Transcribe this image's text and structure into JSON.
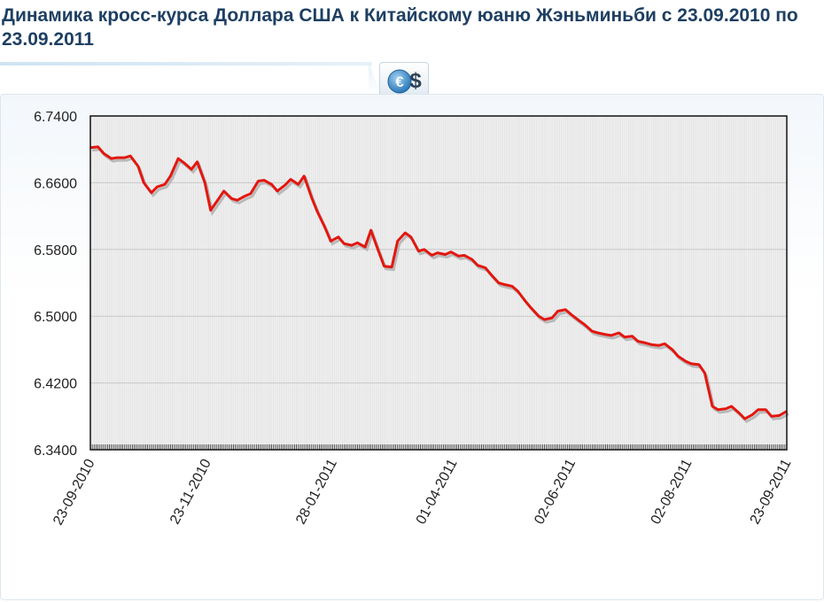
{
  "header": {
    "title": "Динамика кросс-курса Доллара США к Китайскому юаню Жэньминьби с 23.09.2010 по 23.09.2011",
    "badge_icon": "euro-dollar-icon"
  },
  "colors": {
    "title": "#1e3f62",
    "line": "#e2170f",
    "plot_bg": "#f0f0f0",
    "grid": "#d9d9d9"
  },
  "chart_data": {
    "type": "line",
    "ylim": [
      6.34,
      6.74
    ],
    "y_ticks": [
      "6.7400",
      "6.6600",
      "6.5800",
      "6.5000",
      "6.4200",
      "6.3400"
    ],
    "x_ticks": [
      {
        "label": "23-09-2010",
        "x": "2010-09-23"
      },
      {
        "label": "23-11-2010",
        "x": "2010-11-23"
      },
      {
        "label": "28-01-2011",
        "x": "2011-01-28"
      },
      {
        "label": "01-04-2011",
        "x": "2011-04-01"
      },
      {
        "label": "02-06-2011",
        "x": "2011-06-02"
      },
      {
        "label": "02-08-2011",
        "x": "2011-08-02"
      },
      {
        "label": "23-09-2011",
        "x": "2011-09-23"
      }
    ],
    "xlim": [
      "2010-09-23",
      "2011-09-23"
    ],
    "grid": true,
    "series": [
      {
        "points": [
          [
            "2010-09-23",
            6.702
          ],
          [
            "2010-09-27",
            6.703
          ],
          [
            "2010-09-30",
            6.695
          ],
          [
            "2010-10-04",
            6.689
          ],
          [
            "2010-10-07",
            6.69
          ],
          [
            "2010-10-11",
            6.69
          ],
          [
            "2010-10-14",
            6.692
          ],
          [
            "2010-10-18",
            6.68
          ],
          [
            "2010-10-21",
            6.66
          ],
          [
            "2010-10-25",
            6.648
          ],
          [
            "2010-10-28",
            6.655
          ],
          [
            "2010-11-01",
            6.658
          ],
          [
            "2010-11-04",
            6.668
          ],
          [
            "2010-11-08",
            6.689
          ],
          [
            "2010-11-11",
            6.684
          ],
          [
            "2010-11-15",
            6.676
          ],
          [
            "2010-11-18",
            6.685
          ],
          [
            "2010-11-22",
            6.66
          ],
          [
            "2010-11-25",
            6.627
          ],
          [
            "2010-11-29",
            6.64
          ],
          [
            "2010-12-02",
            6.65
          ],
          [
            "2010-12-06",
            6.641
          ],
          [
            "2010-12-09",
            6.639
          ],
          [
            "2010-12-13",
            6.644
          ],
          [
            "2010-12-16",
            6.647
          ],
          [
            "2010-12-20",
            6.662
          ],
          [
            "2010-12-23",
            6.663
          ],
          [
            "2010-12-27",
            6.658
          ],
          [
            "2010-12-30",
            6.65
          ],
          [
            "2011-01-03",
            6.657
          ],
          [
            "2011-01-06",
            6.664
          ],
          [
            "2011-01-10",
            6.658
          ],
          [
            "2011-01-13",
            6.668
          ],
          [
            "2011-01-17",
            6.642
          ],
          [
            "2011-01-20",
            6.625
          ],
          [
            "2011-01-24",
            6.606
          ],
          [
            "2011-01-27",
            6.59
          ],
          [
            "2011-01-31",
            6.595
          ],
          [
            "2011-02-03",
            6.587
          ],
          [
            "2011-02-07",
            6.585
          ],
          [
            "2011-02-10",
            6.588
          ],
          [
            "2011-02-14",
            6.583
          ],
          [
            "2011-02-17",
            6.603
          ],
          [
            "2011-02-21",
            6.578
          ],
          [
            "2011-02-24",
            6.56
          ],
          [
            "2011-02-28",
            6.559
          ],
          [
            "2011-03-03",
            6.59
          ],
          [
            "2011-03-07",
            6.6
          ],
          [
            "2011-03-10",
            6.595
          ],
          [
            "2011-03-14",
            6.578
          ],
          [
            "2011-03-17",
            6.58
          ],
          [
            "2011-03-21",
            6.573
          ],
          [
            "2011-03-24",
            6.576
          ],
          [
            "2011-03-28",
            6.574
          ],
          [
            "2011-03-31",
            6.577
          ],
          [
            "2011-04-04",
            6.572
          ],
          [
            "2011-04-07",
            6.573
          ],
          [
            "2011-04-11",
            6.568
          ],
          [
            "2011-04-14",
            6.561
          ],
          [
            "2011-04-18",
            6.558
          ],
          [
            "2011-04-21",
            6.55
          ],
          [
            "2011-04-25",
            6.54
          ],
          [
            "2011-04-28",
            6.538
          ],
          [
            "2011-05-02",
            6.536
          ],
          [
            "2011-05-05",
            6.53
          ],
          [
            "2011-05-09",
            6.518
          ],
          [
            "2011-05-12",
            6.51
          ],
          [
            "2011-05-16",
            6.5
          ],
          [
            "2011-05-19",
            6.496
          ],
          [
            "2011-05-23",
            6.498
          ],
          [
            "2011-05-26",
            6.506
          ],
          [
            "2011-05-30",
            6.508
          ],
          [
            "2011-06-02",
            6.502
          ],
          [
            "2011-06-06",
            6.495
          ],
          [
            "2011-06-09",
            6.49
          ],
          [
            "2011-06-13",
            6.482
          ],
          [
            "2011-06-16",
            6.48
          ],
          [
            "2011-06-20",
            6.478
          ],
          [
            "2011-06-23",
            6.477
          ],
          [
            "2011-06-27",
            6.48
          ],
          [
            "2011-06-30",
            6.475
          ],
          [
            "2011-07-04",
            6.476
          ],
          [
            "2011-07-07",
            6.47
          ],
          [
            "2011-07-11",
            6.468
          ],
          [
            "2011-07-14",
            6.466
          ],
          [
            "2011-07-18",
            6.465
          ],
          [
            "2011-07-21",
            6.467
          ],
          [
            "2011-07-25",
            6.46
          ],
          [
            "2011-07-28",
            6.452
          ],
          [
            "2011-08-01",
            6.446
          ],
          [
            "2011-08-04",
            6.443
          ],
          [
            "2011-08-08",
            6.442
          ],
          [
            "2011-08-11",
            6.432
          ],
          [
            "2011-08-15",
            6.392
          ],
          [
            "2011-08-18",
            6.388
          ],
          [
            "2011-08-22",
            6.389
          ],
          [
            "2011-08-25",
            6.392
          ],
          [
            "2011-08-29",
            6.384
          ],
          [
            "2011-09-01",
            6.377
          ],
          [
            "2011-09-05",
            6.382
          ],
          [
            "2011-09-08",
            6.388
          ],
          [
            "2011-09-12",
            6.388
          ],
          [
            "2011-09-15",
            6.38
          ],
          [
            "2011-09-19",
            6.381
          ],
          [
            "2011-09-23",
            6.386
          ]
        ]
      }
    ]
  }
}
